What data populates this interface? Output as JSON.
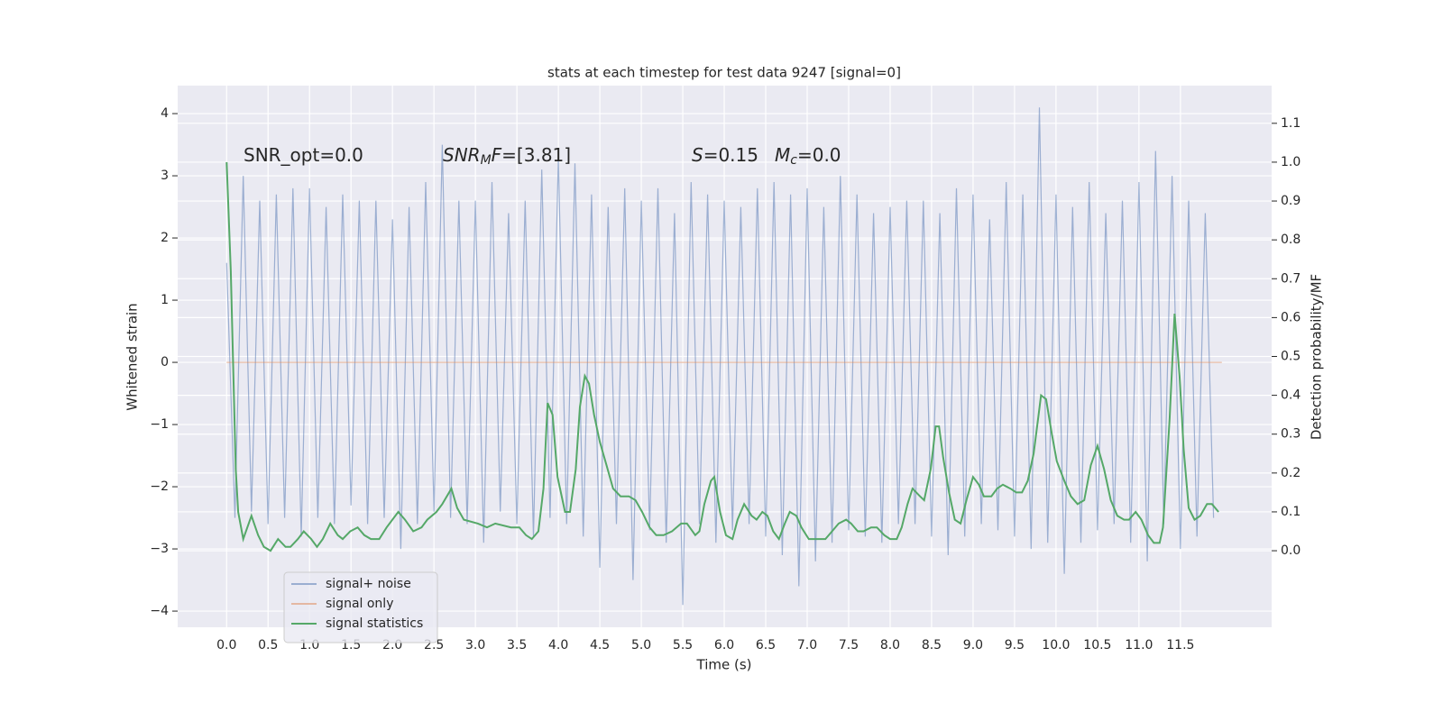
{
  "chart_data": {
    "type": "line",
    "title": "stats at each timestep for test data 9247 [signal=0]",
    "xlabel": "Time (s)",
    "ylabel": "Whitened strain",
    "y2label": "Detection probability/MF",
    "annotations": [
      [
        {
          "text": "SNR_opt=0.0"
        }
      ],
      [
        {
          "text": "SNR",
          "italic": true
        },
        {
          "text": "M",
          "sub": true
        },
        {
          "text": "F",
          "italic": true
        },
        {
          "text": "=[3.81]"
        }
      ],
      [
        {
          "text": "S",
          "italic": true
        },
        {
          "text": "=0.15"
        }
      ],
      [
        {
          "text": "M",
          "italic": true
        },
        {
          "text": "c",
          "sub": true
        },
        {
          "text": "=0.0"
        }
      ]
    ],
    "xlim": [
      -0.59,
      12.6
    ],
    "ylim": [
      -4.26,
      4.45
    ],
    "y2lim": [
      -0.197,
      1.197
    ],
    "grid": true,
    "legend": "lower left",
    "xticks": [
      {
        "value": 0,
        "label": "0.0"
      },
      {
        "value": 0.5,
        "label": "0.5"
      },
      {
        "value": 1,
        "label": "1.0"
      },
      {
        "value": 1.5,
        "label": "1.5"
      },
      {
        "value": 2,
        "label": "2.0"
      },
      {
        "value": 2.5,
        "label": "2.5"
      },
      {
        "value": 3,
        "label": "3.0"
      },
      {
        "value": 3.5,
        "label": "3.5"
      },
      {
        "value": 4,
        "label": "4.0"
      },
      {
        "value": 4.5,
        "label": "4.5"
      },
      {
        "value": 5,
        "label": "5.0"
      },
      {
        "value": 5.5,
        "label": "5.5"
      },
      {
        "value": 6,
        "label": "6.0"
      },
      {
        "value": 6.5,
        "label": "6.5"
      },
      {
        "value": 7,
        "label": "7.0"
      },
      {
        "value": 7.5,
        "label": "7.5"
      },
      {
        "value": 8,
        "label": "8.0"
      },
      {
        "value": 8.5,
        "label": "8.5"
      },
      {
        "value": 9,
        "label": "9.0"
      },
      {
        "value": 9.5,
        "label": "9.5"
      },
      {
        "value": 10,
        "label": "10.0"
      },
      {
        "value": 10.5,
        "label": "10.5"
      },
      {
        "value": 11,
        "label": "11.0"
      },
      {
        "value": 11.5,
        "label": "11.5"
      }
    ],
    "yticks": [
      {
        "value": -4,
        "label": "−4"
      },
      {
        "value": -3,
        "label": "−3"
      },
      {
        "value": -2,
        "label": "−2"
      },
      {
        "value": -1,
        "label": "−1"
      },
      0,
      1,
      2,
      3,
      4
    ],
    "y2ticks": [
      {
        "value": 0,
        "label": "0.0"
      },
      0.1,
      0.2,
      0.3,
      0.4,
      0.5,
      0.6,
      0.7,
      0.8,
      0.9,
      {
        "value": 1,
        "label": "1.0"
      },
      1.1
    ],
    "series": [
      {
        "name": "signal+ noise",
        "color": "#4c72b0",
        "alpha": 0.5,
        "x": [
          0,
          0.1,
          0.2,
          0.3,
          0.4,
          0.5,
          0.6,
          0.7,
          0.8,
          0.9,
          1,
          1.1,
          1.2,
          1.3,
          1.4,
          1.5,
          1.6,
          1.7,
          1.8,
          1.9,
          2,
          2.1,
          2.2,
          2.3,
          2.4,
          2.5,
          2.6,
          2.7,
          2.8,
          2.9,
          3,
          3.1,
          3.2,
          3.3,
          3.4,
          3.5,
          3.6,
          3.7,
          3.8,
          3.9,
          4,
          4.1,
          4.2,
          4.3,
          4.4,
          4.5,
          4.6,
          4.7,
          4.8,
          4.9,
          5,
          5.1,
          5.2,
          5.3,
          5.4,
          5.5,
          5.6,
          5.7,
          5.8,
          5.9,
          6,
          6.1,
          6.2,
          6.3,
          6.4,
          6.5,
          6.6,
          6.7,
          6.8,
          6.9,
          7,
          7.1,
          7.2,
          7.3,
          7.4,
          7.5,
          7.6,
          7.7,
          7.8,
          7.9,
          8,
          8.1,
          8.2,
          8.3,
          8.4,
          8.5,
          8.6,
          8.7,
          8.8,
          8.9,
          9,
          9.1,
          9.2,
          9.3,
          9.4,
          9.5,
          9.6,
          9.7,
          9.8,
          9.9,
          10,
          10.1,
          10.2,
          10.3,
          10.4,
          10.5,
          10.6,
          10.7,
          10.8,
          10.9,
          11,
          11.1,
          11.2,
          11.3,
          11.4,
          11.5,
          11.6,
          11.7,
          11.8,
          11.9
        ],
        "values": [
          1.6,
          -2.5,
          3.0,
          -2.4,
          2.6,
          -2.6,
          2.7,
          -2.5,
          2.8,
          -2.8,
          2.8,
          -2.5,
          2.5,
          -2.6,
          2.7,
          -2.3,
          2.6,
          -2.6,
          2.6,
          -2.5,
          2.3,
          -3.0,
          2.5,
          -2.6,
          2.9,
          -2.4,
          3.5,
          -2.5,
          2.6,
          -2.6,
          2.6,
          -2.9,
          2.9,
          -2.4,
          2.4,
          -2.6,
          2.6,
          -2.8,
          3.1,
          -2.5,
          3.3,
          -2.6,
          3.2,
          -2.8,
          2.7,
          -3.3,
          2.5,
          -2.6,
          2.8,
          -3.5,
          2.6,
          -2.7,
          2.8,
          -2.9,
          2.4,
          -3.9,
          2.9,
          -2.6,
          2.7,
          -2.9,
          2.6,
          -2.7,
          2.5,
          -2.6,
          2.8,
          -2.8,
          2.9,
          -3.1,
          2.7,
          -3.6,
          2.8,
          -3.2,
          2.5,
          -2.9,
          3.0,
          -2.7,
          2.7,
          -2.8,
          2.4,
          -2.9,
          2.5,
          -2.6,
          2.6,
          -2.6,
          2.6,
          -2.8,
          2.4,
          -3.1,
          2.8,
          -2.8,
          2.7,
          -2.6,
          2.3,
          -2.7,
          2.9,
          -2.8,
          2.7,
          -3.0,
          4.1,
          -2.9,
          2.7,
          -3.4,
          2.5,
          -2.9,
          2.9,
          -2.7,
          2.4,
          -2.6,
          2.6,
          -2.9,
          2.9,
          -3.2,
          3.4,
          -2.6,
          3.0,
          -3.0,
          2.6,
          -2.8,
          2.4,
          -2.5
        ]
      },
      {
        "name": "signal only",
        "color": "#dd8452",
        "alpha": 0.5,
        "x": [
          0,
          12
        ],
        "values": [
          0,
          0
        ]
      },
      {
        "name": "signal statistics",
        "color": "#55a868",
        "alpha": 1,
        "axis": "y2",
        "x": [
          0,
          0.05,
          0.11,
          0.14,
          0.2,
          0.3,
          0.38,
          0.45,
          0.53,
          0.62,
          0.71,
          0.77,
          0.86,
          0.93,
          1.02,
          1.09,
          1.16,
          1.25,
          1.34,
          1.4,
          1.49,
          1.58,
          1.66,
          1.74,
          1.84,
          1.93,
          2.07,
          2.15,
          2.25,
          2.35,
          2.42,
          2.53,
          2.6,
          2.71,
          2.78,
          2.86,
          3.03,
          3.14,
          3.24,
          3.43,
          3.53,
          3.61,
          3.68,
          3.76,
          3.82,
          3.87,
          3.93,
          3.99,
          4.08,
          4.14,
          4.21,
          4.26,
          4.32,
          4.37,
          4.43,
          4.5,
          4.58,
          4.66,
          4.75,
          4.85,
          4.93,
          5.01,
          5.1,
          5.18,
          5.27,
          5.37,
          5.48,
          5.55,
          5.65,
          5.7,
          5.76,
          5.84,
          5.88,
          5.95,
          6.02,
          6.1,
          6.16,
          6.24,
          6.33,
          6.39,
          6.46,
          6.52,
          6.59,
          6.66,
          6.73,
          6.79,
          6.87,
          6.93,
          7.02,
          7.22,
          7.3,
          7.38,
          7.47,
          7.53,
          7.61,
          7.68,
          7.77,
          7.84,
          7.93,
          8.0,
          8.08,
          8.14,
          8.21,
          8.27,
          8.36,
          8.41,
          8.49,
          8.55,
          8.59,
          8.64,
          8.71,
          8.78,
          8.85,
          8.92,
          9.0,
          9.07,
          9.13,
          9.22,
          9.29,
          9.36,
          9.45,
          9.52,
          9.59,
          9.66,
          9.73,
          9.79,
          9.82,
          9.88,
          9.95,
          10.01,
          10.1,
          10.18,
          10.26,
          10.34,
          10.42,
          10.5,
          10.58,
          10.66,
          10.74,
          10.82,
          10.88,
          10.96,
          11.03,
          11.11,
          11.18,
          11.25,
          11.29,
          11.37,
          11.43,
          11.49,
          11.54,
          11.6,
          11.67,
          11.74,
          11.82,
          11.88,
          11.96
        ],
        "values": [
          1.0,
          0.72,
          0.21,
          0.1,
          0.03,
          0.09,
          0.04,
          0.01,
          0.0,
          0.03,
          0.01,
          0.01,
          0.03,
          0.05,
          0.03,
          0.01,
          0.03,
          0.07,
          0.04,
          0.03,
          0.05,
          0.06,
          0.04,
          0.03,
          0.03,
          0.06,
          0.1,
          0.08,
          0.05,
          0.06,
          0.08,
          0.1,
          0.12,
          0.16,
          0.11,
          0.08,
          0.07,
          0.06,
          0.07,
          0.06,
          0.06,
          0.04,
          0.03,
          0.05,
          0.16,
          0.38,
          0.35,
          0.19,
          0.1,
          0.1,
          0.21,
          0.37,
          0.45,
          0.43,
          0.35,
          0.28,
          0.22,
          0.16,
          0.14,
          0.14,
          0.13,
          0.1,
          0.06,
          0.04,
          0.04,
          0.05,
          0.07,
          0.07,
          0.04,
          0.05,
          0.12,
          0.18,
          0.19,
          0.1,
          0.04,
          0.03,
          0.08,
          0.12,
          0.09,
          0.08,
          0.1,
          0.09,
          0.05,
          0.03,
          0.07,
          0.1,
          0.09,
          0.06,
          0.03,
          0.03,
          0.05,
          0.07,
          0.08,
          0.07,
          0.05,
          0.05,
          0.06,
          0.06,
          0.04,
          0.03,
          0.03,
          0.06,
          0.12,
          0.16,
          0.14,
          0.13,
          0.21,
          0.32,
          0.32,
          0.24,
          0.15,
          0.08,
          0.07,
          0.13,
          0.19,
          0.17,
          0.14,
          0.14,
          0.16,
          0.17,
          0.16,
          0.15,
          0.15,
          0.18,
          0.25,
          0.35,
          0.4,
          0.39,
          0.3,
          0.23,
          0.18,
          0.14,
          0.12,
          0.13,
          0.22,
          0.27,
          0.21,
          0.13,
          0.09,
          0.08,
          0.08,
          0.1,
          0.08,
          0.04,
          0.02,
          0.02,
          0.06,
          0.34,
          0.61,
          0.45,
          0.26,
          0.11,
          0.08,
          0.09,
          0.12,
          0.12,
          0.1
        ]
      }
    ]
  }
}
